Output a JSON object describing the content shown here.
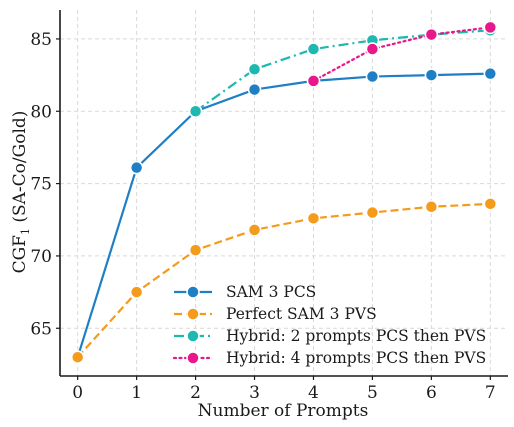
{
  "chart_data": {
    "type": "line",
    "xlabel": "Number of Prompts",
    "ylabel": "CGF",
    "ylabel_sub": "1",
    "ylabel_suffix": " (SA-Co/Gold)",
    "xlim": [
      -0.3,
      7.3
    ],
    "ylim": [
      61.7,
      87.0
    ],
    "x_ticks": [
      0,
      1,
      2,
      3,
      4,
      5,
      6,
      7
    ],
    "y_ticks": [
      65,
      70,
      75,
      80,
      85
    ],
    "grid": true,
    "legend_position": "bottom-right",
    "series": [
      {
        "name": "SAM 3 PCS",
        "color": "#1f7fc4",
        "dash": "solid",
        "x": [
          0,
          1,
          2,
          3,
          4,
          5,
          6,
          7
        ],
        "values": [
          63.0,
          76.1,
          80.0,
          81.5,
          82.1,
          82.4,
          82.5,
          82.6
        ]
      },
      {
        "name": "Perfect SAM 3 PVS",
        "color": "#f59b1c",
        "dash": "dashed",
        "x": [
          0,
          1,
          2,
          3,
          4,
          5,
          6,
          7
        ],
        "values": [
          63.0,
          67.5,
          70.4,
          71.8,
          72.6,
          73.0,
          73.4,
          73.6
        ]
      },
      {
        "name": "Hybrid: 2 prompts PCS then PVS",
        "color": "#1db8b0",
        "dash": "dashdot",
        "x": [
          2,
          3,
          4,
          5,
          6,
          7
        ],
        "values": [
          80.0,
          82.9,
          84.3,
          84.9,
          85.3,
          85.6
        ]
      },
      {
        "name": "Hybrid: 4 prompts PCS then PVS",
        "color": "#e8178a",
        "dash": "dotted",
        "x": [
          4,
          5,
          6,
          7
        ],
        "values": [
          82.1,
          84.3,
          85.3,
          85.8
        ]
      }
    ]
  }
}
